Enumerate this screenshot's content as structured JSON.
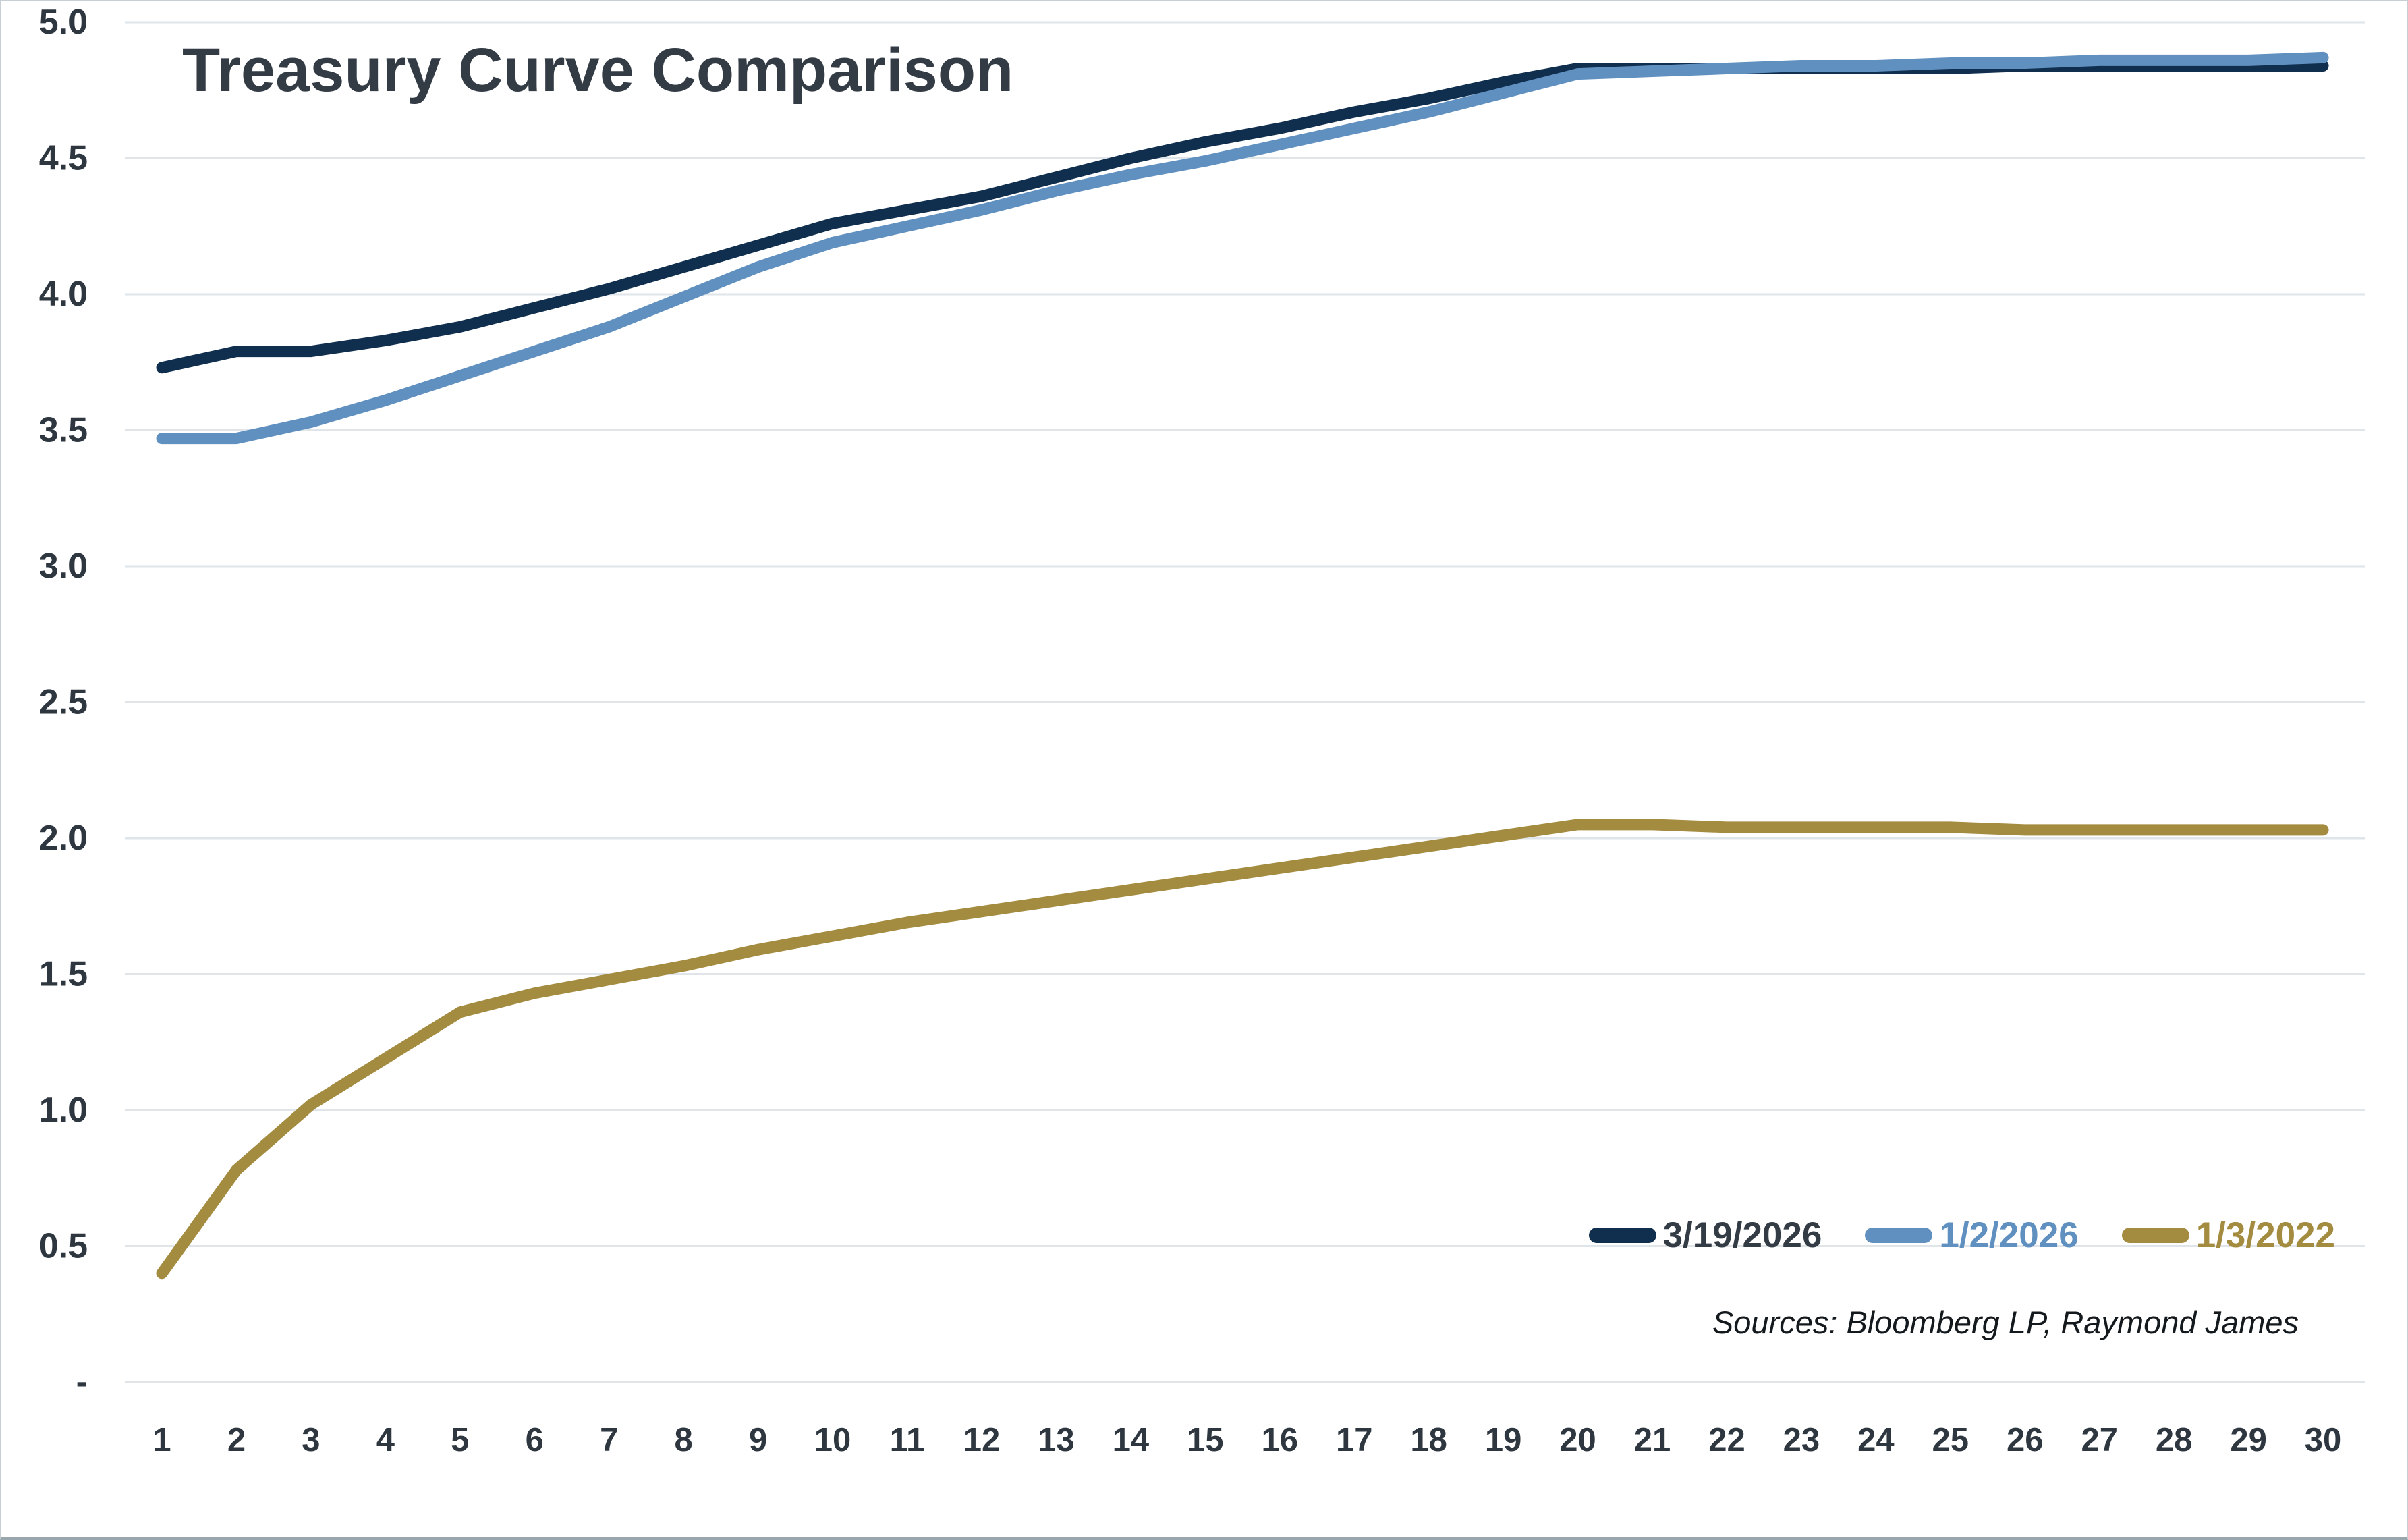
{
  "title": "Treasury Curve Comparison",
  "source_note": "Sources: Bloomberg LP, Raymond James",
  "colors": {
    "series_navy": "#102e4d",
    "series_blue": "#6090c0",
    "series_gold": "#a38b3f",
    "title_text": "#333b45",
    "axis_text": "#2e3740",
    "gridline": "#dfe5e9",
    "legend_label_navy": "#333b45",
    "legend_label_blue": "#6090c0",
    "legend_label_gold": "#a38b3f",
    "source_text": "#14191d"
  },
  "chart_data": {
    "type": "line",
    "title": "Treasury Curve Comparison",
    "xlabel": "",
    "ylabel": "",
    "x": [
      1,
      2,
      3,
      4,
      5,
      6,
      7,
      8,
      9,
      10,
      11,
      12,
      13,
      14,
      15,
      16,
      17,
      18,
      19,
      20,
      21,
      22,
      23,
      24,
      25,
      26,
      27,
      28,
      29,
      30
    ],
    "xtick_labels": [
      "1",
      "2",
      "3",
      "4",
      "5",
      "6",
      "7",
      "8",
      "9",
      "10",
      "11",
      "12",
      "13",
      "14",
      "15",
      "16",
      "17",
      "18",
      "19",
      "20",
      "21",
      "22",
      "23",
      "24",
      "25",
      "26",
      "27",
      "28",
      "29",
      "30"
    ],
    "ylim": [
      0,
      5
    ],
    "ytick_step": 0.5,
    "ytick_values": [
      0,
      0.5,
      1.0,
      1.5,
      2.0,
      2.5,
      3.0,
      3.5,
      4.0,
      4.5,
      5.0
    ],
    "ytick_labels": [
      "-",
      "0.5",
      "1.0",
      "1.5",
      "2.0",
      "2.5",
      "3.0",
      "3.5",
      "4.0",
      "4.5",
      "5.0"
    ],
    "grid": true,
    "legend_position": "inside-bottom-right",
    "series": [
      {
        "name": "3/19/2026",
        "color": "#102e4d",
        "values": [
          3.73,
          3.79,
          3.79,
          3.83,
          3.88,
          3.95,
          4.02,
          4.1,
          4.18,
          4.26,
          4.31,
          4.36,
          4.43,
          4.5,
          4.56,
          4.61,
          4.67,
          4.72,
          4.78,
          4.83,
          4.83,
          4.83,
          4.83,
          4.83,
          4.83,
          4.84,
          4.84,
          4.84,
          4.84,
          4.84
        ]
      },
      {
        "name": "1/2/2026",
        "color": "#6090c0",
        "values": [
          3.47,
          3.47,
          3.53,
          3.61,
          3.7,
          3.79,
          3.88,
          3.99,
          4.1,
          4.19,
          4.25,
          4.31,
          4.38,
          4.44,
          4.49,
          4.55,
          4.61,
          4.67,
          4.74,
          4.81,
          4.82,
          4.83,
          4.84,
          4.84,
          4.85,
          4.85,
          4.86,
          4.86,
          4.86,
          4.87
        ]
      },
      {
        "name": "1/3/2022",
        "color": "#a38b3f",
        "values": [
          0.4,
          0.78,
          1.02,
          1.19,
          1.36,
          1.43,
          1.48,
          1.53,
          1.59,
          1.64,
          1.69,
          1.73,
          1.77,
          1.81,
          1.85,
          1.89,
          1.93,
          1.97,
          2.01,
          2.05,
          2.05,
          2.04,
          2.04,
          2.04,
          2.04,
          2.03,
          2.03,
          2.03,
          2.03,
          2.03
        ]
      }
    ]
  }
}
